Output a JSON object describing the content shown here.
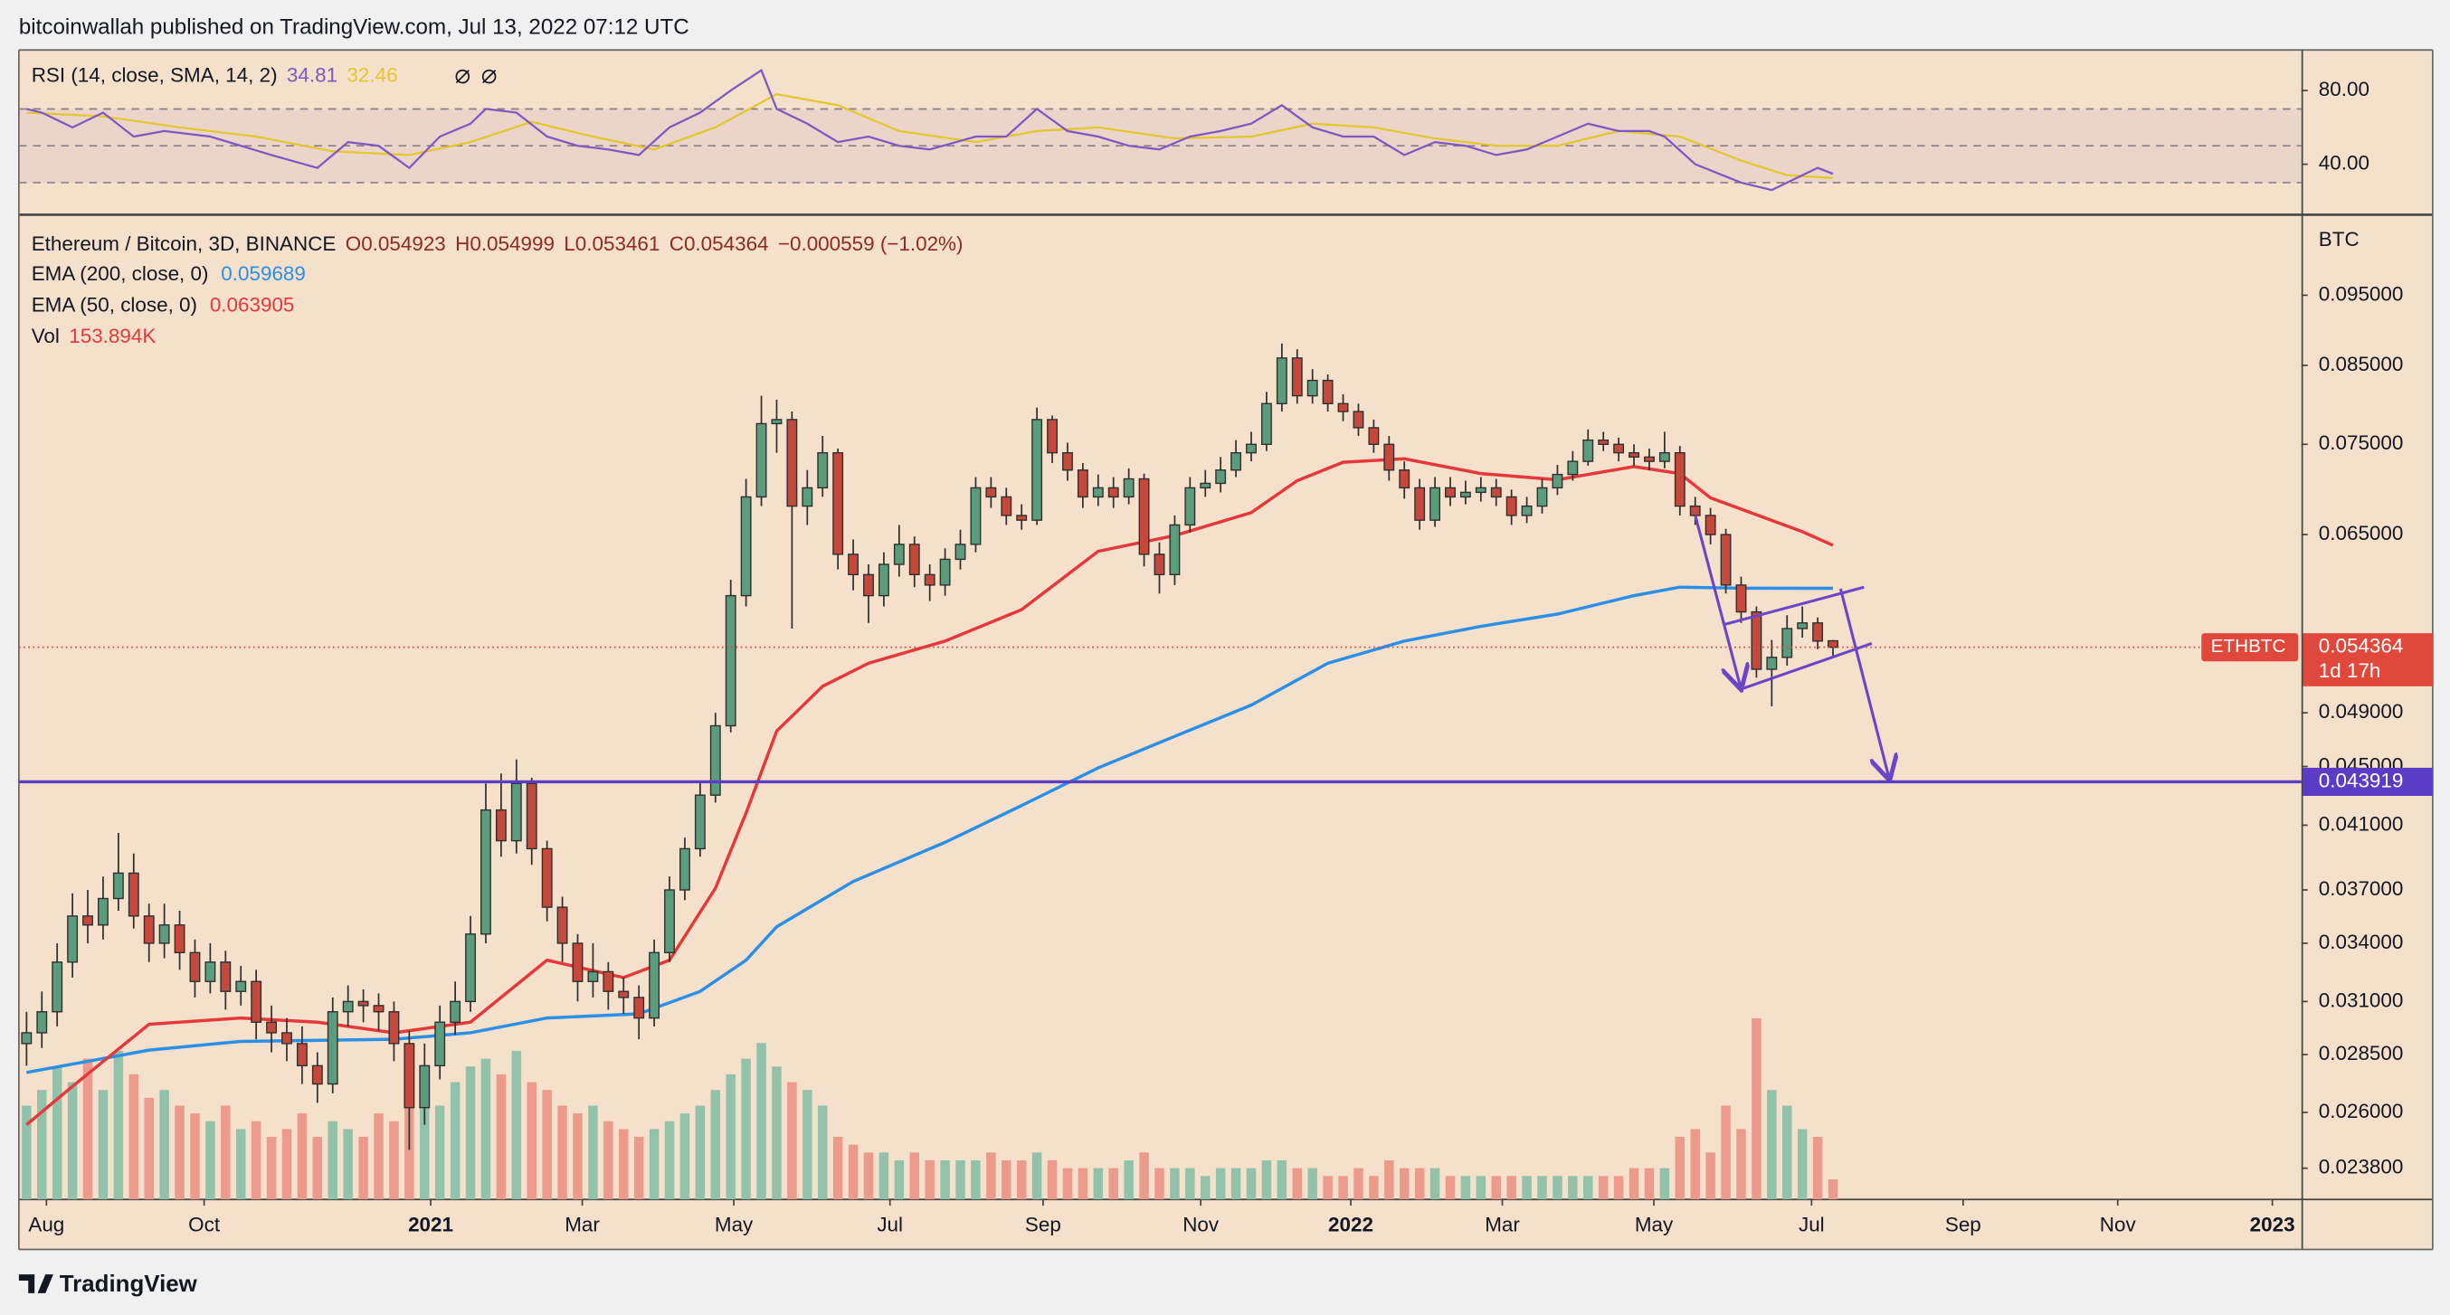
{
  "header": {
    "attribution": "bitcoinwallah published on TradingView.com, Jul 13, 2022 07:12 UTC"
  },
  "footer": {
    "brand": "TradingView"
  },
  "chart_data": [
    {
      "type": "line",
      "title": "RSI (14, close, SMA, 14, 2)",
      "xlim": [
        -0.5,
        148.6
      ],
      "ylim": [
        13,
        102
      ],
      "yticks": [
        {
          "value": 80,
          "label": "80.00"
        },
        {
          "value": 40,
          "label": "40.00"
        }
      ],
      "bands": [
        70,
        50,
        30
      ],
      "series": [
        {
          "color": "#7e57c2",
          "x": [
            0,
            1,
            3,
            5,
            7,
            9,
            12,
            14,
            16,
            19,
            21,
            23,
            25,
            27,
            29,
            30,
            32,
            34,
            36,
            38,
            40,
            42,
            44,
            46,
            48,
            49,
            51,
            53,
            55,
            57,
            59,
            62,
            64,
            66,
            68,
            70,
            72,
            74,
            76,
            78,
            80,
            82,
            84,
            86,
            88,
            90,
            92,
            94,
            96,
            98,
            100,
            102,
            104,
            106,
            107,
            109,
            112,
            114,
            116,
            117,
            118
          ],
          "values": [
            70,
            68,
            60,
            68,
            55,
            58,
            55,
            50,
            45,
            38,
            52,
            50,
            38,
            55,
            62,
            70,
            68,
            55,
            50,
            48,
            45,
            60,
            68,
            80,
            91,
            70,
            62,
            52,
            55,
            50,
            48,
            55,
            55,
            70,
            58,
            55,
            50,
            48,
            55,
            58,
            62,
            72,
            60,
            55,
            55,
            45,
            52,
            50,
            45,
            48,
            55,
            62,
            58,
            58,
            55,
            40,
            30,
            26,
            34,
            38,
            34.81
          ]
        },
        {
          "color": "#e3c72c",
          "x": [
            0,
            5,
            10,
            15,
            20,
            25,
            29,
            33,
            37,
            41,
            45,
            49,
            53,
            57,
            62,
            66,
            70,
            75,
            80,
            84,
            88,
            92,
            96,
            100,
            104,
            108,
            112,
            115,
            118
          ],
          "values": [
            68,
            66,
            60,
            55,
            47,
            45,
            52,
            63,
            55,
            48,
            60,
            78,
            72,
            58,
            52,
            58,
            60,
            54,
            55,
            62,
            60,
            54,
            50,
            50,
            58,
            55,
            42,
            34,
            32.46
          ]
        }
      ]
    },
    {
      "type": "candlestick",
      "title": "Ethereum / Bitcoin, 3D, BINANCE",
      "ohlc_labels": [
        "O0.054923",
        "H0.054999",
        "L0.053461",
        "C0.054364"
      ],
      "change": "−0.000559 (−1.02%)",
      "unit": "BTC",
      "log_scale": true,
      "xlim": [
        -0.5,
        148.6
      ],
      "ylim": [
        0.02265,
        0.1078
      ],
      "xticks": [
        {
          "value": 1.3,
          "label": "Aug"
        },
        {
          "value": 11.6,
          "label": "Oct"
        },
        {
          "value": 26.4,
          "label": "2021"
        },
        {
          "value": 36.3,
          "label": "Mar"
        },
        {
          "value": 46.2,
          "label": "May"
        },
        {
          "value": 56.4,
          "label": "Jul"
        },
        {
          "value": 66.4,
          "label": "Sep"
        },
        {
          "value": 76.7,
          "label": "Nov"
        },
        {
          "value": 86.5,
          "label": "2022"
        },
        {
          "value": 96.4,
          "label": "Mar"
        },
        {
          "value": 106.3,
          "label": "May"
        },
        {
          "value": 116.6,
          "label": "Jul"
        },
        {
          "value": 126.5,
          "label": "Sep"
        },
        {
          "value": 136.6,
          "label": "Nov"
        },
        {
          "value": 146.7,
          "label": "2023"
        }
      ],
      "yticks": [
        {
          "value": 0.095,
          "label": "0.095000"
        },
        {
          "value": 0.085,
          "label": "0.085000"
        },
        {
          "value": 0.075,
          "label": "0.075000"
        },
        {
          "value": 0.065,
          "label": "0.065000"
        },
        {
          "value": 0.049,
          "label": "0.049000"
        },
        {
          "value": 0.045,
          "label": "0.045000"
        },
        {
          "value": 0.041,
          "label": "0.041000"
        },
        {
          "value": 0.037,
          "label": "0.037000"
        },
        {
          "value": 0.034,
          "label": "0.034000"
        },
        {
          "value": 0.031,
          "label": "0.031000"
        },
        {
          "value": 0.0285,
          "label": "0.028500"
        },
        {
          "value": 0.026,
          "label": "0.026000"
        },
        {
          "value": 0.0238,
          "label": "0.023800"
        }
      ],
      "up_color": "#5a9c7c",
      "down_color": "#c4493c",
      "open": [
        0.029,
        0.0295,
        0.0305,
        0.033,
        0.0355,
        0.035,
        0.0365,
        0.038,
        0.0355,
        0.034,
        0.035,
        0.0335,
        0.032,
        0.033,
        0.0315,
        0.032,
        0.03,
        0.0295,
        0.029,
        0.028,
        0.0272,
        0.0305,
        0.031,
        0.0308,
        0.0305,
        0.029,
        0.0262,
        0.028,
        0.03,
        0.031,
        0.0345,
        0.042,
        0.04,
        0.0438,
        0.0395,
        0.036,
        0.034,
        0.032,
        0.0325,
        0.0315,
        0.0312,
        0.0302,
        0.0335,
        0.037,
        0.0395,
        0.043,
        0.048,
        0.059,
        0.069,
        0.0775,
        0.078,
        0.068,
        0.07,
        0.074,
        0.063,
        0.061,
        0.059,
        0.062,
        0.064,
        0.061,
        0.06,
        0.0625,
        0.064,
        0.07,
        0.069,
        0.067,
        0.0665,
        0.078,
        0.074,
        0.072,
        0.069,
        0.07,
        0.069,
        0.071,
        0.063,
        0.061,
        0.066,
        0.07,
        0.0705,
        0.072,
        0.074,
        0.075,
        0.08,
        0.086,
        0.081,
        0.083,
        0.08,
        0.079,
        0.077,
        0.075,
        0.072,
        0.07,
        0.0665,
        0.07,
        0.069,
        0.0695,
        0.07,
        0.069,
        0.067,
        0.068,
        0.07,
        0.0715,
        0.073,
        0.0755,
        0.075,
        0.074,
        0.0735,
        0.073,
        0.074,
        0.068,
        0.067,
        0.065,
        0.06,
        0.0575,
        0.0525,
        0.0535,
        0.056,
        0.0565,
        0.054923
      ],
      "high": [
        0.0305,
        0.0315,
        0.034,
        0.0368,
        0.037,
        0.0378,
        0.0405,
        0.0392,
        0.0362,
        0.0362,
        0.0358,
        0.0342,
        0.034,
        0.0336,
        0.0328,
        0.0326,
        0.0308,
        0.0302,
        0.0298,
        0.0286,
        0.0312,
        0.0318,
        0.0316,
        0.0314,
        0.031,
        0.0296,
        0.029,
        0.0308,
        0.032,
        0.0355,
        0.0438,
        0.0445,
        0.0455,
        0.0442,
        0.04,
        0.0366,
        0.0345,
        0.034,
        0.033,
        0.0322,
        0.0318,
        0.0342,
        0.0378,
        0.0402,
        0.044,
        0.049,
        0.0605,
        0.071,
        0.081,
        0.0805,
        0.079,
        0.072,
        0.076,
        0.0745,
        0.0645,
        0.062,
        0.0632,
        0.066,
        0.0648,
        0.062,
        0.0636,
        0.0655,
        0.0712,
        0.0712,
        0.07,
        0.0682,
        0.0795,
        0.0785,
        0.0752,
        0.0728,
        0.0715,
        0.0712,
        0.0722,
        0.0716,
        0.0642,
        0.067,
        0.0712,
        0.072,
        0.0735,
        0.0755,
        0.0765,
        0.0815,
        0.088,
        0.0872,
        0.0845,
        0.0838,
        0.0812,
        0.08,
        0.078,
        0.076,
        0.073,
        0.071,
        0.0712,
        0.0712,
        0.0708,
        0.0712,
        0.071,
        0.0698,
        0.069,
        0.071,
        0.0726,
        0.0742,
        0.0768,
        0.0765,
        0.0758,
        0.075,
        0.0745,
        0.0765,
        0.0748,
        0.069,
        0.0678,
        0.0656,
        0.0608,
        0.058,
        0.055,
        0.0572,
        0.058,
        0.057,
        0.054999
      ],
      "low": [
        0.028,
        0.0288,
        0.0298,
        0.0322,
        0.034,
        0.0342,
        0.0358,
        0.0348,
        0.033,
        0.0332,
        0.0326,
        0.0312,
        0.0314,
        0.0306,
        0.0308,
        0.0292,
        0.0286,
        0.0282,
        0.0272,
        0.0264,
        0.0268,
        0.0298,
        0.03,
        0.0296,
        0.0282,
        0.0245,
        0.0255,
        0.0274,
        0.0294,
        0.0305,
        0.034,
        0.039,
        0.0392,
        0.0385,
        0.0352,
        0.033,
        0.031,
        0.0312,
        0.0306,
        0.0304,
        0.0292,
        0.0298,
        0.033,
        0.0364,
        0.039,
        0.0425,
        0.0475,
        0.058,
        0.068,
        0.074,
        0.056,
        0.066,
        0.069,
        0.0615,
        0.0595,
        0.0565,
        0.058,
        0.0608,
        0.0598,
        0.0585,
        0.059,
        0.0615,
        0.0632,
        0.0678,
        0.066,
        0.0655,
        0.066,
        0.0728,
        0.0708,
        0.0678,
        0.068,
        0.0678,
        0.0682,
        0.0618,
        0.0592,
        0.06,
        0.0652,
        0.069,
        0.0695,
        0.0712,
        0.073,
        0.0742,
        0.079,
        0.08,
        0.08,
        0.079,
        0.0778,
        0.076,
        0.074,
        0.0708,
        0.0688,
        0.0655,
        0.0658,
        0.068,
        0.0682,
        0.0685,
        0.068,
        0.066,
        0.0662,
        0.0672,
        0.0692,
        0.0708,
        0.0725,
        0.0742,
        0.073,
        0.0725,
        0.072,
        0.0722,
        0.067,
        0.066,
        0.064,
        0.0592,
        0.0565,
        0.0518,
        0.0495,
        0.0528,
        0.0552,
        0.0542,
        0.053461
      ],
      "close": [
        0.0295,
        0.0305,
        0.033,
        0.0355,
        0.035,
        0.0365,
        0.038,
        0.0355,
        0.034,
        0.035,
        0.0335,
        0.032,
        0.033,
        0.0315,
        0.032,
        0.03,
        0.0295,
        0.029,
        0.028,
        0.0272,
        0.0305,
        0.031,
        0.0308,
        0.0305,
        0.029,
        0.0262,
        0.028,
        0.03,
        0.031,
        0.0345,
        0.042,
        0.04,
        0.0438,
        0.0395,
        0.036,
        0.034,
        0.032,
        0.0325,
        0.0315,
        0.0312,
        0.0302,
        0.0335,
        0.037,
        0.0395,
        0.043,
        0.048,
        0.059,
        0.069,
        0.0775,
        0.078,
        0.068,
        0.07,
        0.074,
        0.063,
        0.061,
        0.059,
        0.062,
        0.064,
        0.061,
        0.06,
        0.0625,
        0.064,
        0.07,
        0.069,
        0.067,
        0.0665,
        0.078,
        0.074,
        0.072,
        0.069,
        0.07,
        0.069,
        0.071,
        0.063,
        0.061,
        0.066,
        0.07,
        0.0705,
        0.072,
        0.074,
        0.075,
        0.08,
        0.086,
        0.081,
        0.083,
        0.08,
        0.079,
        0.077,
        0.075,
        0.072,
        0.07,
        0.0665,
        0.07,
        0.069,
        0.0695,
        0.07,
        0.069,
        0.067,
        0.068,
        0.07,
        0.0715,
        0.073,
        0.0755,
        0.075,
        0.074,
        0.0735,
        0.073,
        0.074,
        0.068,
        0.067,
        0.065,
        0.06,
        0.0575,
        0.0525,
        0.0535,
        0.056,
        0.0565,
        0.0549,
        0.054364
      ],
      "lines": [
        {
          "name": "EMA (200, close, 0)",
          "color": "#2a8fe6",
          "x": [
            0,
            8,
            14,
            24,
            29,
            34,
            40,
            44,
            47,
            49,
            54,
            60,
            65,
            70,
            75,
            80,
            85,
            90,
            95,
            100,
            105,
            108,
            112,
            118
          ],
          "values": [
            0.0277,
            0.0287,
            0.0291,
            0.0292,
            0.0295,
            0.0302,
            0.0304,
            0.0315,
            0.0331,
            0.0349,
            0.0375,
            0.0399,
            0.0423,
            0.0449,
            0.0472,
            0.0496,
            0.053,
            0.0549,
            0.0562,
            0.0573,
            0.059,
            0.0598,
            0.0597,
            0.059689
          ]
        },
        {
          "name": "EMA (50, close, 0)",
          "color": "#e5383b",
          "x": [
            0,
            3,
            8,
            14,
            19,
            24,
            29,
            34,
            39,
            42,
            45,
            47,
            49,
            52,
            55,
            60,
            65,
            70,
            75,
            80,
            83,
            86,
            90,
            95,
            100,
            105,
            108,
            110,
            116,
            118
          ],
          "values": [
            0.0255,
            0.0271,
            0.0299,
            0.0302,
            0.03,
            0.0295,
            0.03,
            0.0331,
            0.0322,
            0.0331,
            0.0371,
            0.0418,
            0.0476,
            0.0511,
            0.053,
            0.0549,
            0.0577,
            0.0633,
            0.0649,
            0.0673,
            0.0708,
            0.0729,
            0.0733,
            0.0716,
            0.0709,
            0.0724,
            0.0716,
            0.0689,
            0.0653,
            0.063905
          ]
        }
      ],
      "volume": {
        "name": "Vol",
        "last_label": "153.894K",
        "up_color": "#93c2ab",
        "down_color": "#eb9a8c",
        "values": [
          720,
          840,
          1020,
          900,
          1080,
          840,
          1140,
          960,
          780,
          840,
          720,
          660,
          600,
          720,
          540,
          600,
          480,
          540,
          660,
          480,
          600,
          540,
          480,
          660,
          600,
          840,
          960,
          720,
          900,
          1020,
          1080,
          960,
          1140,
          900,
          840,
          720,
          660,
          720,
          600,
          540,
          480,
          540,
          600,
          660,
          720,
          840,
          960,
          1080,
          1200,
          1020,
          900,
          840,
          720,
          480,
          420,
          360,
          360,
          300,
          360,
          300,
          300,
          300,
          300,
          360,
          300,
          300,
          360,
          300,
          240,
          240,
          240,
          240,
          300,
          360,
          240,
          240,
          240,
          180,
          240,
          240,
          240,
          300,
          300,
          240,
          240,
          180,
          180,
          240,
          180,
          300,
          240,
          240,
          240,
          180,
          180,
          180,
          180,
          180,
          180,
          180,
          180,
          180,
          180,
          180,
          180,
          240,
          240,
          240,
          480,
          540,
          360,
          720,
          540,
          1390,
          840,
          720,
          540,
          480,
          153.894
        ]
      },
      "hline": {
        "value": 0.043919,
        "color": "#5b3cc4"
      },
      "price_label": {
        "symbol": "ETHBTC",
        "countdown": "1d 17h",
        "color": "#e0483b"
      }
    }
  ]
}
